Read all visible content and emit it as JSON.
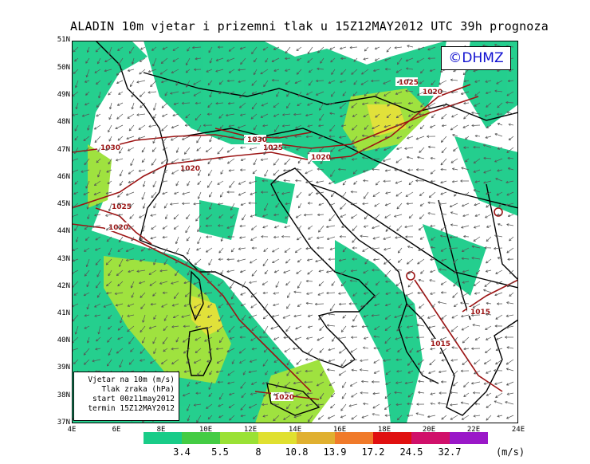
{
  "title": "ALADIN 10m vjetar i prizemni tlak u 15Z12MAY2012 UTC 39h prognoza",
  "logo": "©DHMZ",
  "lat_labels": [
    "51N",
    "50N",
    "49N",
    "48N",
    "47N",
    "46N",
    "45N",
    "44N",
    "43N",
    "42N",
    "41N",
    "40N",
    "39N",
    "38N",
    "37N"
  ],
  "lon_labels": [
    "4E",
    "6E",
    "8E",
    "10E",
    "12E",
    "14E",
    "16E",
    "18E",
    "20E",
    "22E",
    "24E"
  ],
  "legend": {
    "line1": "Vjetar na 10m (m/s)",
    "line2": "Tlak zraka (hPa)",
    "line3": "start 00z11may2012",
    "line4": "termin 15Z12MAY2012"
  },
  "isobar_labels": [
    "1030",
    "1030",
    "1025",
    "1020",
    "1020",
    "1025",
    "1020",
    "1025",
    "1020",
    "1015",
    "1015",
    "1020"
  ],
  "colorbar": {
    "unit": "(m/s)",
    "labels": [
      "3.4",
      "5.5",
      "8",
      "10.8",
      "13.9",
      "17.2",
      "24.5",
      "32.7"
    ],
    "colors": [
      "#19cc88",
      "#44cc44",
      "#9ae135",
      "#e0e030",
      "#e0b030",
      "#f07a2a",
      "#e01010",
      "#d0106a",
      "#9a18c8"
    ]
  },
  "colors": {
    "background": "#ffffff",
    "sea": "#d8f0ff",
    "coast": "#000000",
    "isobar": "#9c1414",
    "logo_text": "#1010d0"
  }
}
